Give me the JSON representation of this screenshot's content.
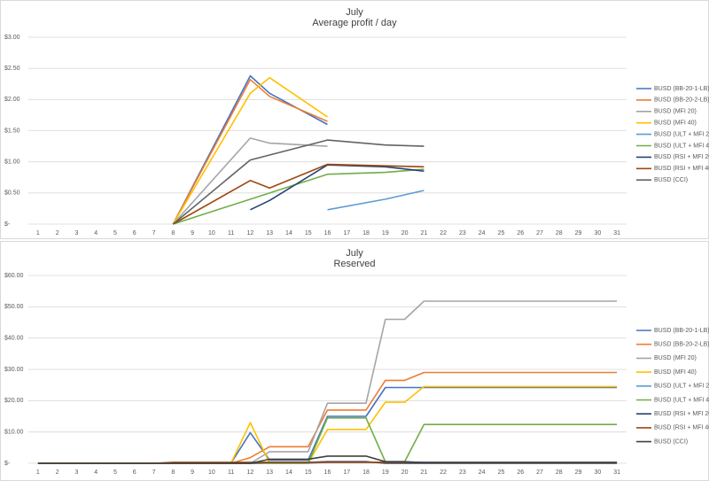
{
  "chart_data": [
    {
      "type": "line",
      "title": "July",
      "subtitle": "Average profit / day",
      "xlim": [
        0.5,
        31.5
      ],
      "xticks": [
        1,
        2,
        3,
        4,
        5,
        6,
        7,
        8,
        9,
        10,
        11,
        12,
        13,
        14,
        15,
        16,
        17,
        18,
        19,
        20,
        21,
        22,
        23,
        24,
        25,
        26,
        27,
        28,
        29,
        30,
        31
      ],
      "ylim": [
        0,
        3
      ],
      "yticks": [
        {
          "value": 0,
          "label": "$-"
        },
        {
          "value": 0.5,
          "label": "$0.50"
        },
        {
          "value": 1,
          "label": "$1.00"
        },
        {
          "value": 1.5,
          "label": "$1.50"
        },
        {
          "value": 2,
          "label": "$2.00"
        },
        {
          "value": 2.5,
          "label": "$2.50"
        },
        {
          "value": 3,
          "label": "$3.00"
        }
      ],
      "grid": true,
      "legend": "right",
      "series": [
        {
          "name": "BUSD (BB-20-1-LB)",
          "color": "#4472c4",
          "x": [
            8,
            12,
            13,
            16
          ],
          "values": [
            0,
            2.38,
            2.1,
            1.6
          ]
        },
        {
          "name": "BUSD (BB-20-2-LB)",
          "color": "#ed7d31",
          "x": [
            8,
            12,
            13,
            16
          ],
          "values": [
            0,
            2.32,
            2.05,
            1.65
          ]
        },
        {
          "name": "BUSD (MFI 20)",
          "color": "#a5a5a5",
          "x": [
            8,
            12,
            13,
            16
          ],
          "values": [
            0,
            1.38,
            1.3,
            1.25
          ]
        },
        {
          "name": "BUSD (MFI 40)",
          "color": "#ffc000",
          "x": [
            8,
            12,
            13,
            16
          ],
          "values": [
            0,
            2.1,
            2.35,
            1.72
          ]
        },
        {
          "name": "BUSD (ULT + MFI 20)",
          "color": "#5b9bd5",
          "x": [
            16,
            19,
            21
          ],
          "values": [
            0.23,
            0.4,
            0.54
          ]
        },
        {
          "name": "BUSD (ULT + MFI 40)",
          "color": "#70ad47",
          "x": [
            8,
            16,
            19,
            21
          ],
          "values": [
            0,
            0.8,
            0.83,
            0.88
          ]
        },
        {
          "name": "BUSD (RSI + MFI 20)",
          "color": "#264478",
          "x": [
            12,
            13,
            16,
            19,
            21
          ],
          "values": [
            0.23,
            0.38,
            0.95,
            0.92,
            0.85
          ]
        },
        {
          "name": "BUSD (RSI + MFI 40)",
          "color": "#9e480e",
          "x": [
            8,
            12,
            13,
            16,
            21
          ],
          "values": [
            0,
            0.7,
            0.58,
            0.96,
            0.92
          ]
        },
        {
          "name": "BUSD (CCI)",
          "color": "#636363",
          "x": [
            8,
            12,
            16,
            19,
            21
          ],
          "values": [
            0,
            1.03,
            1.35,
            1.27,
            1.25
          ]
        }
      ]
    },
    {
      "type": "line",
      "title": "July",
      "subtitle": "Reserved",
      "xlim": [
        0.5,
        31.5
      ],
      "xticks": [
        1,
        2,
        3,
        4,
        5,
        6,
        7,
        8,
        9,
        10,
        11,
        12,
        13,
        14,
        15,
        16,
        17,
        18,
        19,
        20,
        21,
        22,
        23,
        24,
        25,
        26,
        27,
        28,
        29,
        30,
        31
      ],
      "x": [
        1,
        2,
        3,
        4,
        5,
        6,
        7,
        8,
        9,
        10,
        11,
        12,
        13,
        14,
        15,
        16,
        17,
        18,
        19,
        20,
        21,
        22,
        23,
        24,
        25,
        26,
        27,
        28,
        29,
        30,
        31
      ],
      "ylim": [
        0,
        60
      ],
      "yticks": [
        {
          "value": 0,
          "label": "$-"
        },
        {
          "value": 10,
          "label": "$10.00"
        },
        {
          "value": 20,
          "label": "$20.00"
        },
        {
          "value": 30,
          "label": "$30.00"
        },
        {
          "value": 40,
          "label": "$40.00"
        },
        {
          "value": 50,
          "label": "$50.00"
        },
        {
          "value": 60,
          "label": "$60.00"
        }
      ],
      "grid": true,
      "legend": "right",
      "series": [
        {
          "name": "BUSD (BB-20-1-LB)",
          "color": "#4472c4",
          "values": [
            0,
            0,
            0,
            0,
            0,
            0,
            0,
            0,
            0,
            0,
            0,
            9.8,
            1,
            1,
            1,
            15,
            15,
            15,
            24.2,
            24.2,
            24.2,
            24.2,
            24.2,
            24.2,
            24.2,
            24.2,
            24.2,
            24.2,
            24.2,
            24.2,
            24.2
          ]
        },
        {
          "name": "BUSD (BB-20-2-LB)",
          "color": "#ed7d31",
          "values": [
            0,
            0,
            0,
            0,
            0,
            0,
            0,
            0,
            0,
            0,
            0,
            1.8,
            5.3,
            5.3,
            5.3,
            17,
            17,
            17,
            26.5,
            26.5,
            29,
            29,
            29,
            29,
            29,
            29,
            29,
            29,
            29,
            29,
            29
          ]
        },
        {
          "name": "BUSD (MFI 20)",
          "color": "#a5a5a5",
          "values": [
            0,
            0,
            0,
            0,
            0,
            0,
            0,
            0,
            0,
            0,
            0,
            0,
            3.7,
            3.7,
            3.7,
            19.2,
            19.2,
            19.2,
            46,
            46,
            51.8,
            51.8,
            51.8,
            51.8,
            51.8,
            51.8,
            51.8,
            51.8,
            51.8,
            51.8,
            51.8
          ]
        },
        {
          "name": "BUSD (MFI 40)",
          "color": "#ffc000",
          "values": [
            0,
            0,
            0,
            0,
            0,
            0,
            0,
            0,
            0,
            0,
            0,
            13,
            0,
            0,
            0,
            10.8,
            10.8,
            10.8,
            19.5,
            19.5,
            24.5,
            24.5,
            24.5,
            24.5,
            24.5,
            24.5,
            24.5,
            24.5,
            24.5,
            24.5,
            24.5
          ]
        },
        {
          "name": "BUSD (ULT + MFI 20)",
          "color": "#5b9bd5",
          "values": [
            0,
            0,
            0,
            0,
            0,
            0,
            0,
            0,
            0,
            0,
            0,
            0,
            0,
            0,
            0,
            0.3,
            0.3,
            0.3,
            0.3,
            0.3,
            0.3,
            0.3,
            0.3,
            0.3,
            0.3,
            0.3,
            0.3,
            0.3,
            0.3,
            0.3,
            0.3
          ]
        },
        {
          "name": "BUSD (ULT + MFI 40)",
          "color": "#70ad47",
          "values": [
            0,
            0,
            0,
            0,
            0,
            0,
            0,
            0,
            0,
            0,
            0,
            0,
            0,
            0,
            0,
            14.5,
            14.5,
            14.5,
            0.5,
            0.5,
            12.4,
            12.4,
            12.4,
            12.4,
            12.4,
            12.4,
            12.4,
            12.4,
            12.4,
            12.4,
            12.4
          ]
        },
        {
          "name": "BUSD (RSI + MFI 20)",
          "color": "#264478",
          "values": [
            0,
            0,
            0,
            0,
            0,
            0,
            0,
            0,
            0,
            0,
            0,
            0,
            0.3,
            0.3,
            0.3,
            0.5,
            0.5,
            0.5,
            0,
            0,
            0,
            0,
            0,
            0,
            0,
            0,
            0,
            0,
            0,
            0,
            0
          ]
        },
        {
          "name": "BUSD (RSI + MFI 40)",
          "color": "#9e480e",
          "values": [
            0,
            0,
            0,
            0,
            0,
            0,
            0,
            0.3,
            0.3,
            0.3,
            0.3,
            0.3,
            0.3,
            0.3,
            0.3,
            0.3,
            0.3,
            0.3,
            0.3,
            0.3,
            0.3,
            0.3,
            0.3,
            0.3,
            0.3,
            0.3,
            0.3,
            0.3,
            0.3,
            0.3,
            0.3
          ]
        },
        {
          "name": "BUSD (CCI)",
          "color": "#404040",
          "values": [
            0,
            0,
            0,
            0,
            0,
            0,
            0,
            0,
            0,
            0,
            0,
            0,
            1.3,
            1.3,
            1.3,
            2.3,
            2.3,
            2.3,
            0.5,
            0.5,
            0.2,
            0.2,
            0.2,
            0.2,
            0.2,
            0.2,
            0.2,
            0.2,
            0.2,
            0.2,
            0.2
          ]
        }
      ]
    }
  ]
}
